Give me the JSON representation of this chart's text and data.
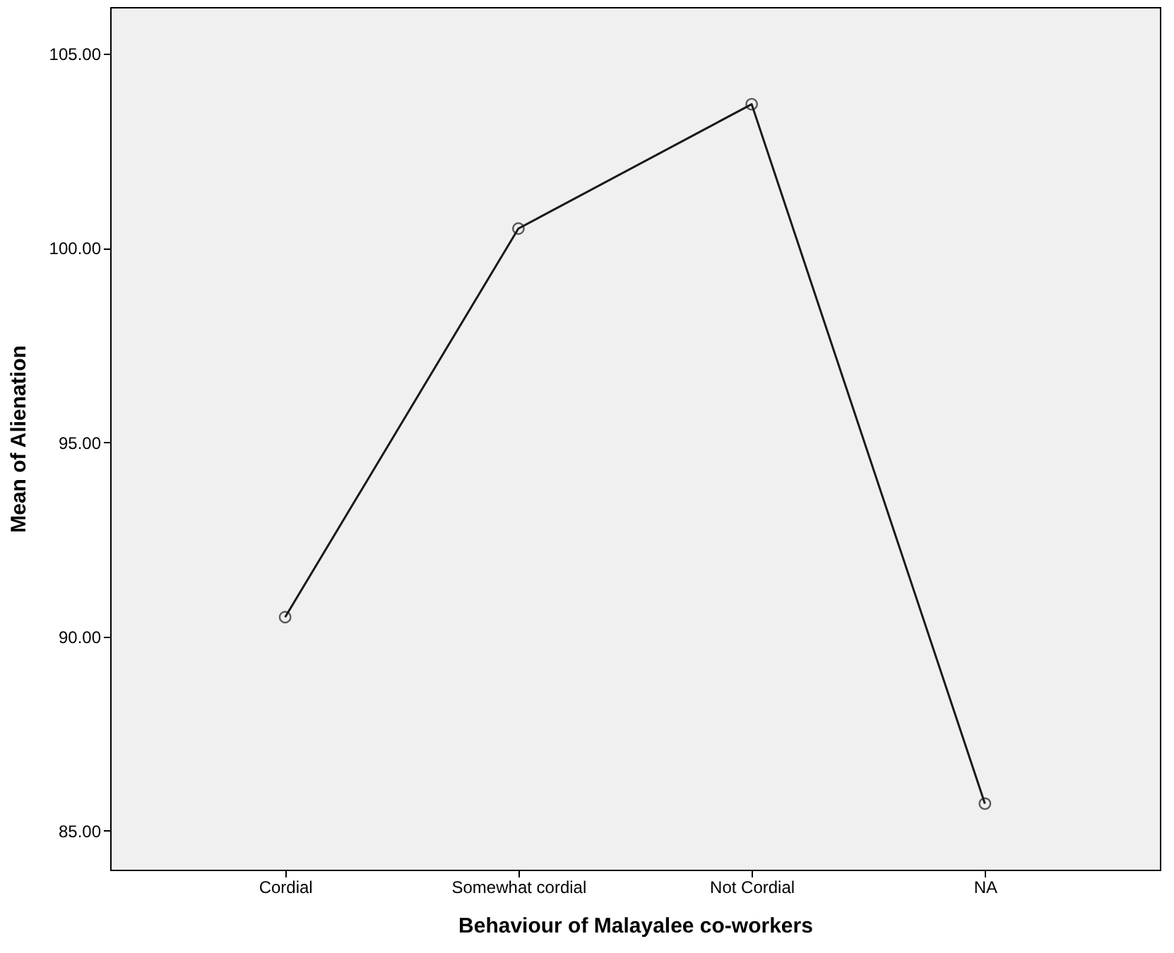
{
  "chart_data": {
    "type": "line",
    "xlabel": "Behaviour of Malayalee co-workers",
    "ylabel": "Mean of Alienation",
    "categories": [
      "Cordial",
      "Somewhat cordial",
      "Not Cordial",
      "NA"
    ],
    "series": [
      {
        "color": "#1a1a1a",
        "values": [
          90.5,
          100.5,
          103.7,
          85.7
        ]
      }
    ],
    "ylim": [
      84,
      106.2
    ],
    "yticks": [
      {
        "value": 85,
        "label": "85.00"
      },
      {
        "value": 90,
        "label": "90.00"
      },
      {
        "value": 95,
        "label": "95.00"
      },
      {
        "value": 100,
        "label": "100.00"
      },
      {
        "value": 105,
        "label": "105.00"
      }
    ],
    "grid": false,
    "marker": "circle",
    "line_style": "solid"
  }
}
